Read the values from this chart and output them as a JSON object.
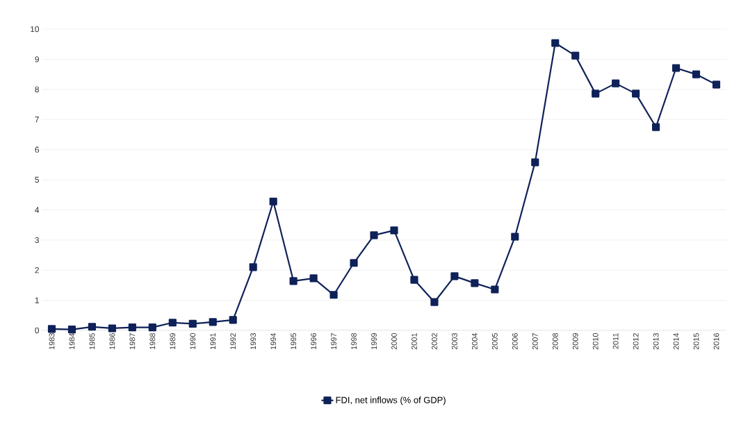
{
  "chart_data": {
    "type": "line",
    "categories": [
      "1983",
      "1984",
      "1985",
      "1986",
      "1987",
      "1988",
      "1989",
      "1990",
      "1991",
      "1992",
      "1993",
      "1994",
      "1995",
      "1996",
      "1997",
      "1998",
      "1999",
      "2000",
      "2001",
      "2002",
      "2003",
      "2004",
      "2005",
      "2006",
      "2007",
      "2008",
      "2009",
      "2010",
      "2011",
      "2012",
      "2013",
      "2014",
      "2015",
      "2016"
    ],
    "series": [
      {
        "name": "FDI, net inflows (% of GDP)",
        "color": "#0e2158",
        "values": [
          0.05,
          0.03,
          0.12,
          0.07,
          0.1,
          0.1,
          0.26,
          0.22,
          0.28,
          0.35,
          2.1,
          4.28,
          1.64,
          1.73,
          1.18,
          2.24,
          3.16,
          3.32,
          1.68,
          0.94,
          1.8,
          1.57,
          1.36,
          3.11,
          5.58,
          9.54,
          9.12,
          7.86,
          8.2,
          7.86,
          6.75,
          8.71,
          8.5,
          8.16
        ]
      }
    ],
    "ylim": [
      0,
      10
    ],
    "yticks": [
      0,
      1,
      2,
      3,
      4,
      5,
      6,
      7,
      8,
      9,
      10
    ],
    "grid": "y",
    "legend": "bottom",
    "marker": "square",
    "line_style": "solid"
  }
}
